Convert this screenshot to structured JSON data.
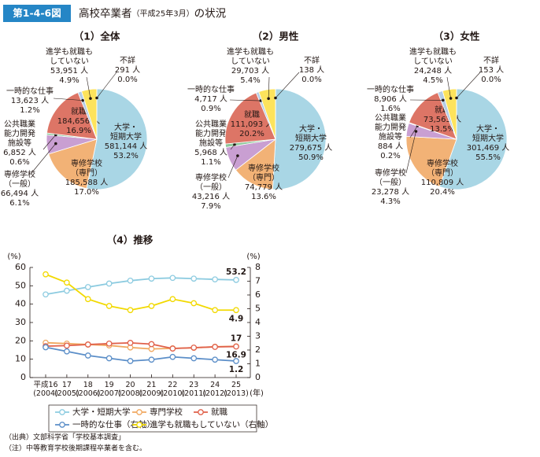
{
  "header": {
    "label": "第1-4-6図",
    "title": "高校卒業者",
    "subtitle": "（平成25年3月）",
    "title_suffix": "の状況"
  },
  "chart_data": [
    {
      "type": "pie",
      "title": "（1）全体",
      "categories": [
        "大学・\n短期大学",
        "専修学校\n（専門）",
        "専修学校\n（一般）",
        "公共職業\n能力開発\n施設等",
        "就職",
        "一時的な仕事",
        "進学も就職も\nしていない",
        "不詳"
      ],
      "count_labels": [
        "581,144 人",
        "185,588 人",
        "66,494 人",
        "6,852 人",
        "184,656 人",
        "13,623 人",
        "53,951 人",
        "291 人"
      ],
      "values": [
        53.2,
        17.0,
        6.1,
        0.6,
        16.9,
        1.2,
        4.9,
        0.0
      ],
      "value_labels": [
        "53.2%",
        "17.0%",
        "6.1%",
        "0.6%",
        "16.9%",
        "1.2%",
        "4.9%",
        "0.0%"
      ],
      "colors": [
        "#a9d6e5",
        "#f2b276",
        "#c99fd2",
        "#8cc79a",
        "#dd7566",
        "#b4cde6",
        "#fde35c",
        "#ffffff"
      ]
    },
    {
      "type": "pie",
      "title": "（2）男性",
      "categories": [
        "大学・\n短期大学",
        "専修学校\n（専門）",
        "専修学校\n（一般）",
        "公共職業\n能力開発\n施設等",
        "就職",
        "一時的な仕事",
        "進学も就職も\nしていない",
        "不詳"
      ],
      "count_labels": [
        "279,675 人",
        "74,779 人",
        "43,216 人",
        "5,968 人",
        "111,093 人",
        "4,717 人",
        "29,703 人",
        "138 人"
      ],
      "values": [
        50.9,
        13.6,
        7.9,
        1.1,
        20.2,
        0.9,
        5.4,
        0.0
      ],
      "value_labels": [
        "50.9%",
        "13.6%",
        "7.9%",
        "1.1%",
        "20.2%",
        "0.9%",
        "5.4%",
        "0.0%"
      ],
      "colors": [
        "#a9d6e5",
        "#f2b276",
        "#c99fd2",
        "#8cc79a",
        "#dd7566",
        "#b4cde6",
        "#fde35c",
        "#ffffff"
      ]
    },
    {
      "type": "pie",
      "title": "（3）女性",
      "categories": [
        "大学・\n短期大学",
        "専修学校\n（専門）",
        "専修学校\n（一般）",
        "公共職業\n能力開発\n施設等",
        "就職",
        "一時的な仕事",
        "進学も就職も\nしていない",
        "不詳"
      ],
      "count_labels": [
        "301,469 人",
        "110,809 人",
        "23,278 人",
        "884 人",
        "73,563 人",
        "8,906 人",
        "24,248 人",
        "153 人"
      ],
      "values": [
        55.5,
        20.4,
        4.3,
        0.2,
        13.5,
        1.6,
        4.5,
        0.0
      ],
      "value_labels": [
        "55.5%",
        "20.4%",
        "4.3%",
        "0.2%",
        "13.5%",
        "1.6%",
        "4.5%",
        "0.0%"
      ],
      "colors": [
        "#a9d6e5",
        "#f2b276",
        "#c99fd2",
        "#8cc79a",
        "#dd7566",
        "#b4cde6",
        "#fde35c",
        "#ffffff"
      ]
    },
    {
      "type": "line",
      "title": "（4）推移",
      "categories": [
        "平成16\n(2004)",
        "17\n(2005)",
        "18\n(2006)",
        "19\n(2007)",
        "20\n(2008)",
        "21\n(2009)",
        "22\n(2010)",
        "23\n(2011)",
        "24\n(2012)",
        "25\n(2013)"
      ],
      "xlabel": "(年)",
      "ylabel": "(%)",
      "y2label": "(%)",
      "ylim": [
        0,
        60
      ],
      "yticks": [
        0,
        10,
        20,
        30,
        40,
        50,
        60
      ],
      "y2lim": [
        0,
        8
      ],
      "y2ticks": [
        0,
        1,
        2,
        3,
        4,
        5,
        6,
        7,
        8
      ],
      "series": [
        {
          "name": "大学・短期大学",
          "color": "#8ccbe0",
          "values": [
            45.3,
            47.3,
            49.3,
            51.2,
            52.8,
            53.9,
            54.3,
            53.9,
            53.5,
            53.2
          ]
        },
        {
          "name": "専門学校",
          "color": "#f0a860",
          "values": [
            19.0,
            18.5,
            18.0,
            17.5,
            16.4,
            15.6,
            15.9,
            16.2,
            16.8,
            17.0
          ]
        },
        {
          "name": "就職",
          "color": "#e0604a",
          "values": [
            17.1,
            17.4,
            18.0,
            18.5,
            18.9,
            18.2,
            15.8,
            16.3,
            16.7,
            16.9
          ]
        },
        {
          "name": "一時的な仕事（右軸）",
          "color": "#5b8ec8",
          "axis": "y2",
          "values": [
            2.2,
            1.9,
            1.6,
            1.4,
            1.2,
            1.3,
            1.5,
            1.4,
            1.3,
            1.2
          ]
        },
        {
          "name": "進学も就職もしていない（右軸）",
          "color": "#f2d900",
          "axis": "y2",
          "values": [
            7.5,
            6.9,
            5.7,
            5.2,
            4.9,
            5.2,
            5.7,
            5.4,
            4.9,
            4.9
          ]
        }
      ]
    }
  ],
  "footer": {
    "source": "（出典）文部科学省「学校基本調査」",
    "note": "（注）中等教育学校後期課程卒業者を含む。"
  }
}
